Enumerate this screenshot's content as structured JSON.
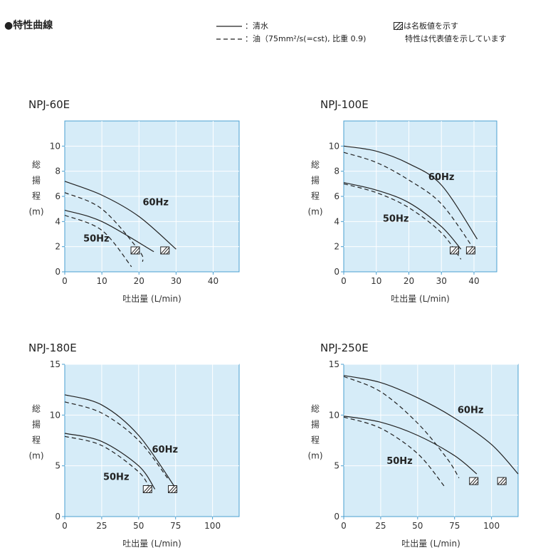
{
  "header": {
    "title": "●特性曲線",
    "legend_water": "：清水",
    "legend_oil": "：油（75mm²/s(=cst), 比重 0.9)",
    "note_line1": "は名板値を示す",
    "note_line2": "特性は代表値を示しています"
  },
  "colors": {
    "plot_bg": "#d6ecf8",
    "grid": "#ffffff",
    "axis": "#4a9fd0",
    "curve": "#222222"
  },
  "chart_data": [
    {
      "type": "line",
      "title": "NPJ-60E",
      "xlabel": "吐出量 (L/min)",
      "ylabel": [
        "総",
        "揚",
        "程",
        "(m)"
      ],
      "xlim": [
        0,
        47
      ],
      "ylim": [
        0,
        12
      ],
      "xticks": [
        0,
        10,
        20,
        30,
        40
      ],
      "yticks": [
        0,
        2,
        4,
        6,
        8,
        10
      ],
      "series": [
        {
          "name": "60Hz",
          "style": "solid",
          "x": [
            0,
            10,
            20,
            30
          ],
          "y": [
            7.2,
            6.1,
            4.4,
            1.8
          ]
        },
        {
          "name": "60Hz",
          "style": "dashed",
          "x": [
            0,
            10,
            20,
            21
          ],
          "y": [
            6.3,
            5.0,
            1.7,
            0.8
          ]
        },
        {
          "name": "50Hz",
          "style": "solid",
          "x": [
            0,
            10,
            24
          ],
          "y": [
            4.9,
            4.0,
            1.6
          ]
        },
        {
          "name": "50Hz",
          "style": "dashed",
          "x": [
            0,
            10,
            18
          ],
          "y": [
            4.5,
            3.3,
            0.4
          ]
        }
      ],
      "annotations": [
        {
          "text": "60Hz",
          "x": 21,
          "y": 5.3
        },
        {
          "text": "50Hz",
          "x": 5,
          "y": 2.4
        }
      ],
      "rated_points": [
        {
          "x": 19,
          "y": 1.7
        },
        {
          "x": 27,
          "y": 1.7
        }
      ]
    },
    {
      "type": "line",
      "title": "NPJ-100E",
      "xlabel": "吐出量 (L/min)",
      "ylabel": [
        "総",
        "揚",
        "程",
        "(m)"
      ],
      "xlim": [
        0,
        47
      ],
      "ylim": [
        0,
        12
      ],
      "xticks": [
        0,
        10,
        20,
        30,
        40
      ],
      "yticks": [
        0,
        2,
        4,
        6,
        8,
        10
      ],
      "series": [
        {
          "name": "60Hz",
          "style": "solid",
          "x": [
            0,
            10,
            20,
            30,
            41
          ],
          "y": [
            10.0,
            9.6,
            8.6,
            6.9,
            2.6
          ]
        },
        {
          "name": "60Hz",
          "style": "dashed",
          "x": [
            0,
            10,
            20,
            30,
            40
          ],
          "y": [
            9.5,
            8.7,
            7.3,
            5.4,
            1.8
          ]
        },
        {
          "name": "50Hz",
          "style": "solid",
          "x": [
            0,
            10,
            20,
            30,
            36
          ],
          "y": [
            7.1,
            6.5,
            5.5,
            3.6,
            1.8
          ]
        },
        {
          "name": "50Hz",
          "style": "dashed",
          "x": [
            0,
            10,
            20,
            30,
            36
          ],
          "y": [
            7.0,
            6.3,
            5.1,
            3.1,
            1.0
          ]
        }
      ],
      "annotations": [
        {
          "text": "60Hz",
          "x": 26,
          "y": 7.3
        },
        {
          "text": "50Hz",
          "x": 12,
          "y": 4.0
        }
      ],
      "rated_points": [
        {
          "x": 34,
          "y": 1.7
        },
        {
          "x": 39,
          "y": 1.7
        }
      ]
    },
    {
      "type": "line",
      "title": "NPJ-180E",
      "xlabel": "吐出量 (L/min)",
      "ylabel": [
        "総",
        "揚",
        "程",
        "(m)"
      ],
      "xlim": [
        0,
        118
      ],
      "ylim": [
        0,
        15
      ],
      "xticks": [
        0,
        25,
        50,
        75,
        100
      ],
      "yticks": [
        0,
        5,
        10,
        15
      ],
      "series": [
        {
          "name": "60Hz",
          "style": "solid",
          "x": [
            0,
            25,
            50,
            75
          ],
          "y": [
            12.0,
            11.0,
            8.0,
            2.8
          ]
        },
        {
          "name": "60Hz",
          "style": "dashed",
          "x": [
            0,
            25,
            50,
            70
          ],
          "y": [
            11.3,
            10.2,
            7.5,
            3.7
          ]
        },
        {
          "name": "50Hz",
          "style": "solid",
          "x": [
            0,
            25,
            50,
            61
          ],
          "y": [
            8.2,
            7.4,
            5.0,
            2.7
          ]
        },
        {
          "name": "50Hz",
          "style": "dashed",
          "x": [
            0,
            25,
            50,
            58
          ],
          "y": [
            7.9,
            7.0,
            4.4,
            2.6
          ]
        }
      ],
      "annotations": [
        {
          "text": "60Hz",
          "x": 59,
          "y": 6.3
        },
        {
          "text": "50Hz",
          "x": 26,
          "y": 3.6
        }
      ],
      "rated_points": [
        {
          "x": 56,
          "y": 2.7
        },
        {
          "x": 73,
          "y": 2.7
        }
      ]
    },
    {
      "type": "line",
      "title": "NPJ-250E",
      "xlabel": "吐出量 (L/min)",
      "ylabel": [
        "総",
        "揚",
        "程",
        "(m)"
      ],
      "xlim": [
        0,
        118
      ],
      "ylim": [
        0,
        15
      ],
      "xticks": [
        0,
        25,
        50,
        75,
        100
      ],
      "yticks": [
        0,
        5,
        10,
        15
      ],
      "series": [
        {
          "name": "60Hz",
          "style": "solid",
          "x": [
            0,
            25,
            50,
            75,
            100,
            118
          ],
          "y": [
            13.9,
            13.2,
            11.7,
            9.7,
            7.1,
            4.2
          ]
        },
        {
          "name": "60Hz",
          "style": "dashed",
          "x": [
            0,
            25,
            50,
            70,
            78
          ],
          "y": [
            13.8,
            12.3,
            9.2,
            5.7,
            3.8
          ]
        },
        {
          "name": "50Hz",
          "style": "solid",
          "x": [
            0,
            25,
            50,
            75,
            90
          ],
          "y": [
            9.9,
            9.3,
            8.0,
            6.0,
            4.2
          ]
        },
        {
          "name": "50Hz",
          "style": "dashed",
          "x": [
            0,
            25,
            50,
            68
          ],
          "y": [
            9.8,
            8.7,
            6.2,
            3.0
          ]
        }
      ],
      "annotations": [
        {
          "text": "60Hz",
          "x": 77,
          "y": 10.2
        },
        {
          "text": "50Hz",
          "x": 29,
          "y": 5.2
        }
      ],
      "rated_points": [
        {
          "x": 88,
          "y": 3.5
        },
        {
          "x": 107,
          "y": 3.5
        }
      ]
    }
  ]
}
